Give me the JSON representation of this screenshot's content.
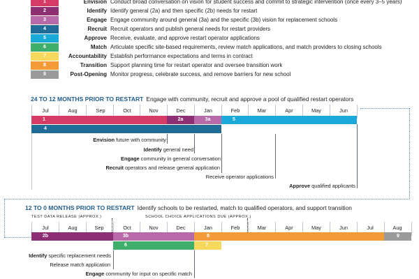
{
  "legend": [
    {
      "num": "1",
      "name": "Envision",
      "desc": "Conduct broad conversation on vision for student success and commit to strategic intervention (once every 3–5 years)",
      "color": "#d63a66"
    },
    {
      "num": "2",
      "name": "Identify",
      "desc": "Identify general (2a) and then specific (2b) needs for restart",
      "color": "#8e2f73"
    },
    {
      "num": "3",
      "name": "Engage",
      "desc": "Engage community around general (3a) and the specific (3b) vision for replacement schools",
      "color": "#b66aa8"
    },
    {
      "num": "4",
      "name": "Recruit",
      "desc": "Recruit operators and publish general needs for restart providers",
      "color": "#1f6c99"
    },
    {
      "num": "5",
      "name": "Approve",
      "desc": "Receive, evaluate, and approve restart operator applications",
      "color": "#1aa9d8"
    },
    {
      "num": "6",
      "name": "Match",
      "desc": "Articulate specific site-based requirements, review match applications, and match providers to closing schools",
      "color": "#3fae6a"
    },
    {
      "num": "7",
      "name": "Accountability",
      "desc": "Establish performance expectations and terms in contract",
      "color": "#f6d85c"
    },
    {
      "num": "8",
      "name": "Transition",
      "desc": "Support planning time for restart operator and oversee transition work",
      "color": "#f29b38"
    },
    {
      "num": "9",
      "name": "Post-Opening",
      "desc": "Monitor progress, celebrate success, and remove barriers for new school",
      "color": "#9a9a9a"
    }
  ],
  "section1": {
    "title": "24 TO 12 MONTHS PRIOR TO RESTART",
    "desc": "Engage with community, recruit and approve a pool of qualified restart operators",
    "months": [
      "Jul",
      "Aug",
      "Sep",
      "Oct",
      "Nov",
      "Dec",
      "Jan",
      "Feb",
      "Mar",
      "Apr",
      "May",
      "Jun"
    ],
    "bars": [
      {
        "label": "1",
        "color": "#d63a66"
      },
      {
        "label": "2a",
        "color": "#8e2f73"
      },
      {
        "label": "3a",
        "color": "#b66aa8"
      },
      {
        "label": "5",
        "color": "#1aa9d8"
      },
      {
        "label": "4",
        "color": "#1f6c99"
      }
    ],
    "milestones": [
      {
        "bold": "Envision",
        "rest": " future with community"
      },
      {
        "bold": "Identify",
        "rest": " general need"
      },
      {
        "bold": "Engage",
        "rest": " community in general conversation"
      },
      {
        "bold": "Recruit",
        "rest": " operators and release general application"
      },
      {
        "bold": "",
        "rest": "Receive operator applications"
      },
      {
        "bold": "Approve",
        "rest": " qualified applicants"
      }
    ]
  },
  "section2": {
    "title": "12 TO 0 MONTHS PRIOR TO RESTART",
    "desc": "Identify schools to be restarted, match to qualified operators, and support transition",
    "months": [
      "Jul",
      "Aug",
      "Sep",
      "Oct",
      "Nov",
      "Dec",
      "Jan",
      "Feb",
      "Mar",
      "Apr",
      "May",
      "Jun",
      "Jul",
      "Aug"
    ],
    "test_data": "TEST DATA RELEASE (APPROX.)",
    "school_choice": "SCHOOL CHOICE APPLICATIONS DUE (APPROX.)",
    "bars": [
      {
        "label": "2b",
        "color": "#8e2f73"
      },
      {
        "label": "3b",
        "color": "#b66aa8"
      },
      {
        "label": "8",
        "color": "#f29b38"
      },
      {
        "label": "9",
        "color": "#9a9a9a"
      },
      {
        "label": "6",
        "color": "#3fae6a"
      },
      {
        "label": "7",
        "color": "#f6d85c"
      }
    ],
    "milestones": [
      {
        "bold": "Identify",
        "rest": " specific replacement needs"
      },
      {
        "bold": "",
        "rest": "Release match application"
      },
      {
        "bold": "Engage",
        "rest": " community for input on specific match"
      }
    ]
  }
}
